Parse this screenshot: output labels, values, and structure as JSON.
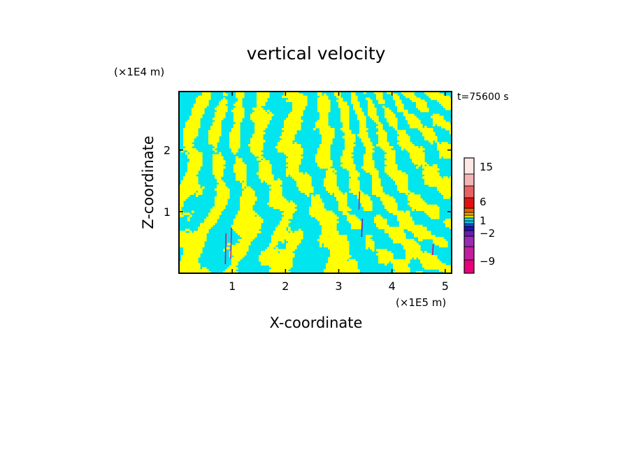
{
  "chart_data": {
    "type": "heatmap",
    "title": "vertical velocity",
    "xlabel": "X-coordinate",
    "ylabel": "Z-coordinate",
    "x_unit": "(×1E5 m)",
    "y_unit": "(×1E4 m)",
    "time_label": "t=75600 s",
    "xlim": [
      0,
      5.12
    ],
    "ylim": [
      0,
      2.95
    ],
    "x_ticks": [
      "1",
      "2",
      "3",
      "4",
      "5"
    ],
    "y_ticks": [
      "1",
      "2"
    ],
    "colorbar_labels": [
      "15",
      "6",
      "1",
      "−2",
      "−9"
    ],
    "colorbar_levels": [
      {
        "color": "#e8007a"
      },
      {
        "color": "#c41e9e"
      },
      {
        "color": "#9b2ab4"
      },
      {
        "color": "#6a1cb0"
      },
      {
        "color": "#1f14b5"
      },
      {
        "color": "#0a55d6"
      },
      {
        "color": "#17c0e6"
      },
      {
        "color": "#00e5ee"
      },
      {
        "color": "#e8d800"
      },
      {
        "color": "#f2a800"
      },
      {
        "color": "#ec6000"
      },
      {
        "color": "#e21111"
      },
      {
        "color": "#e86262"
      },
      {
        "color": "#f2b4b4"
      },
      {
        "color": "#fde8e3"
      }
    ],
    "field_colors": {
      "positive": "#ffff00",
      "negative": "#00e5ee"
    }
  }
}
